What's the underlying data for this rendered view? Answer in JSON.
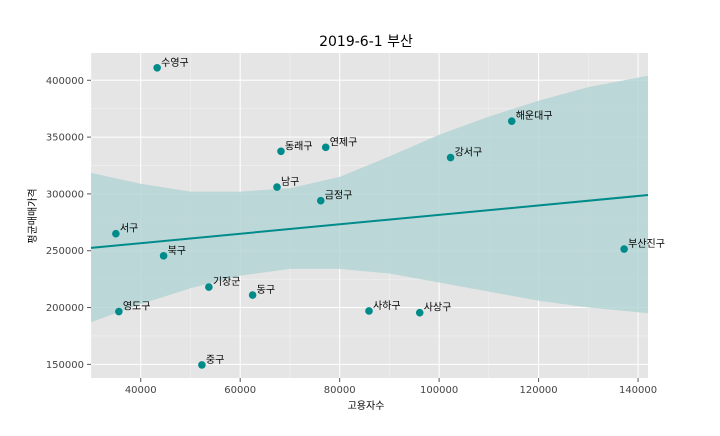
{
  "chart_data": {
    "type": "scatter",
    "title": "2019-6-1 부산",
    "xlabel": "고용자수",
    "ylabel": "평균매매가격",
    "xlim": [
      30000,
      142000
    ],
    "ylim": [
      138000,
      424000
    ],
    "grid": true,
    "x_ticks": [
      {
        "value": 40000,
        "label": "40000"
      },
      {
        "value": 60000,
        "label": "60000"
      },
      {
        "value": 80000,
        "label": "80000"
      },
      {
        "value": 100000,
        "label": "100000"
      },
      {
        "value": 120000,
        "label": "120000"
      },
      {
        "value": 140000,
        "label": "140000"
      }
    ],
    "y_ticks": [
      {
        "value": 150000,
        "label": "150000"
      },
      {
        "value": 200000,
        "label": "200000"
      },
      {
        "value": 250000,
        "label": "250000"
      },
      {
        "value": 300000,
        "label": "300000"
      },
      {
        "value": 350000,
        "label": "350000"
      },
      {
        "value": 400000,
        "label": "400000"
      }
    ],
    "points": [
      {
        "label": "수영구",
        "x": 43300,
        "y": 411000
      },
      {
        "label": "해운대구",
        "x": 114600,
        "y": 364000
      },
      {
        "label": "동래구",
        "x": 68200,
        "y": 337500
      },
      {
        "label": "연제구",
        "x": 77200,
        "y": 341000
      },
      {
        "label": "강서구",
        "x": 102300,
        "y": 332000
      },
      {
        "label": "남구",
        "x": 67400,
        "y": 306000
      },
      {
        "label": "금정구",
        "x": 76200,
        "y": 294000
      },
      {
        "label": "서구",
        "x": 35000,
        "y": 265000
      },
      {
        "label": "북구",
        "x": 44600,
        "y": 245500
      },
      {
        "label": "부산진구",
        "x": 137200,
        "y": 251500
      },
      {
        "label": "기장군",
        "x": 53700,
        "y": 218000
      },
      {
        "label": "동구",
        "x": 62500,
        "y": 211000
      },
      {
        "label": "영도구",
        "x": 35600,
        "y": 196500
      },
      {
        "label": "사하구",
        "x": 85900,
        "y": 197000
      },
      {
        "label": "사상구",
        "x": 96100,
        "y": 195500
      },
      {
        "label": "중구",
        "x": 52300,
        "y": 149500
      }
    ],
    "regression": {
      "x": [
        30000,
        142000
      ],
      "y": [
        252500,
        299000
      ]
    },
    "ci_band": {
      "x": [
        30000,
        40000,
        50000,
        60000,
        70000,
        80000,
        90000,
        100000,
        110000,
        120000,
        130000,
        142000
      ],
      "upper": [
        318500,
        309000,
        302000,
        302000,
        305000,
        315000,
        333000,
        352000,
        368000,
        382000,
        394000,
        404000
      ],
      "lower": [
        187000,
        203000,
        217000,
        228000,
        234000,
        234000,
        230000,
        222000,
        214000,
        206000,
        200000,
        195000
      ]
    },
    "colors": {
      "background": "#e5e5e5",
      "grid": "#ffffff",
      "point": "#008b8b",
      "line": "#008b8b",
      "band": "#b2d3d3",
      "text": "#000000",
      "tick_text": "#444444"
    }
  }
}
